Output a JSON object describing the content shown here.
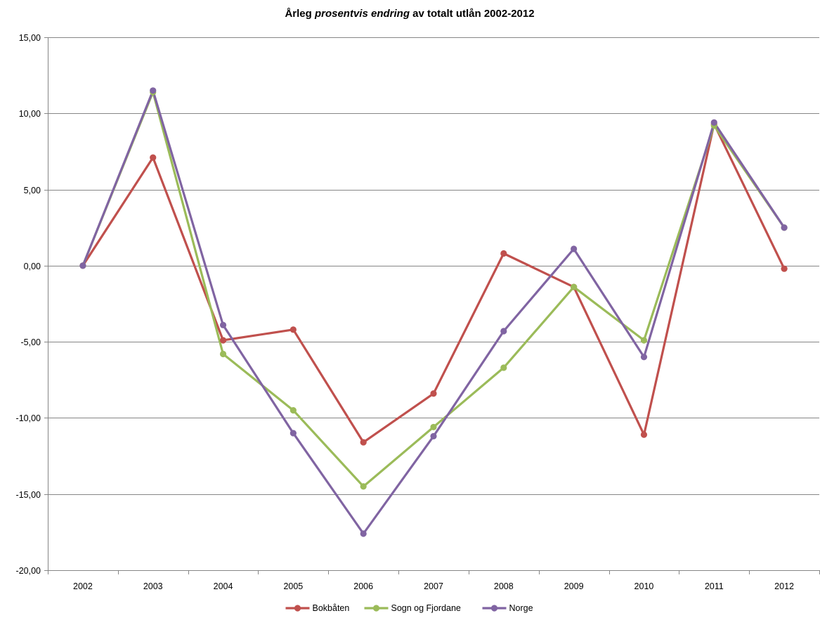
{
  "chart_data": {
    "type": "line",
    "title": {
      "part1": "Årleg ",
      "part2": "prosentvis endring",
      "part3": " av totalt utlån 2002-2012"
    },
    "xlabel": "",
    "ylabel": "",
    "categories": [
      "2002",
      "2003",
      "2004",
      "2005",
      "2006",
      "2007",
      "2008",
      "2009",
      "2010",
      "2011",
      "2012"
    ],
    "ylim": [
      -20,
      15
    ],
    "y_ticks": [
      15,
      10,
      5,
      0,
      -5,
      -10,
      -15,
      -20
    ],
    "y_tick_labels": [
      "15,00",
      "10,00",
      "5,00",
      "0,00",
      "-5,00",
      "-10,00",
      "-15,00",
      "-20,00"
    ],
    "grid": "horizontal",
    "legend_position": "bottom",
    "series": [
      {
        "name": "Bokbåten",
        "color": "#c0504d",
        "values": [
          0.0,
          7.1,
          -4.9,
          -4.2,
          -11.6,
          -8.4,
          0.8,
          -1.4,
          -11.1,
          9.3,
          -0.2
        ]
      },
      {
        "name": "Sogn og Fjordane",
        "color": "#9bbb59",
        "values": [
          0.0,
          11.4,
          -5.8,
          -9.5,
          -14.5,
          -10.6,
          -6.7,
          -1.4,
          -4.9,
          9.2,
          2.5
        ]
      },
      {
        "name": "Norge",
        "color": "#8064a2",
        "values": [
          0.0,
          11.5,
          -3.9,
          -11.0,
          -17.6,
          -11.2,
          -4.3,
          1.1,
          -6.0,
          9.4,
          2.5
        ]
      }
    ]
  }
}
